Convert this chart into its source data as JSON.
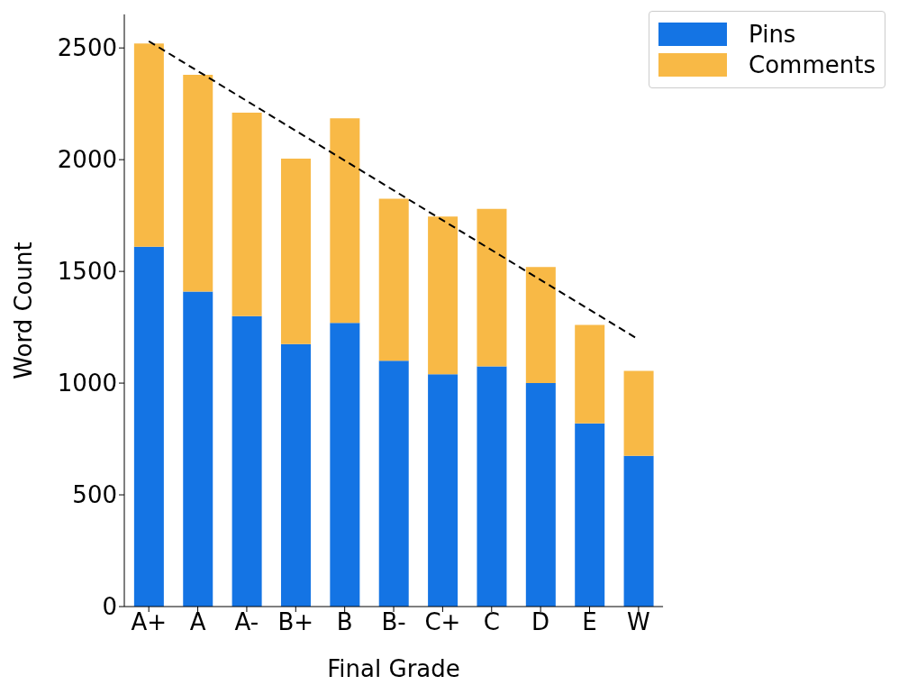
{
  "chart_data": {
    "type": "bar",
    "stacked": true,
    "xlabel": "Final Grade",
    "ylabel": "Word Count",
    "categories": [
      "A+",
      "A",
      "A-",
      "B+",
      "B",
      "B-",
      "C+",
      "C",
      "D",
      "E",
      "W"
    ],
    "series": [
      {
        "name": "Pins",
        "color": "#1474e4",
        "values": [
          1610,
          1410,
          1300,
          1175,
          1270,
          1100,
          1040,
          1075,
          1000,
          820,
          675
        ]
      },
      {
        "name": "Comments",
        "color": "#f8b946",
        "values": [
          910,
          970,
          910,
          830,
          915,
          725,
          705,
          705,
          520,
          440,
          380
        ]
      },
      {
        "type": "line",
        "color": "#000000",
        "line_style": "dashed",
        "x": [
          "A+",
          "W"
        ],
        "values": [
          2530,
          1195
        ]
      }
    ],
    "ylim": [
      0,
      2650
    ],
    "yticks": [
      0,
      500,
      1000,
      1500,
      2000,
      2500
    ],
    "grid": false,
    "legend": "top right"
  }
}
